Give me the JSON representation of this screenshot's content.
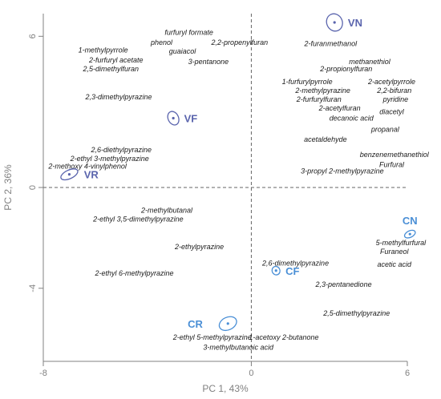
{
  "chart_data": {
    "type": "scatter",
    "xlabel": "PC 1, 43%",
    "ylabel": "PC 2, 36%",
    "xlim": [
      -8,
      6
    ],
    "ylim": [
      -6.9,
      6.9
    ],
    "x_ticks": [
      -8,
      0,
      6
    ],
    "y_ticks": [
      -4,
      0,
      6
    ],
    "reference_lines": {
      "x": 0,
      "y": 0,
      "style": "dashed"
    },
    "colors": {
      "group_dark": "#5a64ad",
      "group_light": "#4a8fd6",
      "text": "#1a1a1a",
      "axis": "#808080"
    },
    "groups": [
      {
        "label": "VN",
        "x": 3.2,
        "y": 6.55,
        "ex": 0.3,
        "ey": 0.35,
        "color": "#5a64ad"
      },
      {
        "label": "VF",
        "x": -3.0,
        "y": 2.75,
        "ex": 0.2,
        "ey": 0.28,
        "color": "#5a64ad"
      },
      {
        "label": "VR",
        "x": -7.0,
        "y": 0.52,
        "ex": 0.35,
        "ey": 0.17,
        "color": "#5a64ad"
      },
      {
        "label": "CN",
        "x": 6.1,
        "y": -1.85,
        "ex": 0.22,
        "ey": 0.13,
        "color": "#4a8fd6"
      },
      {
        "label": "CF",
        "x": 0.95,
        "y": -3.3,
        "ex": 0.15,
        "ey": 0.17,
        "color": "#4a8fd6"
      },
      {
        "label": "CR",
        "x": -0.9,
        "y": -5.4,
        "ex": 0.35,
        "ey": 0.25,
        "color": "#4a8fd6"
      }
    ],
    "variables": [
      {
        "label": "furfuryl formate",
        "x": -2.4,
        "y": 6.15
      },
      {
        "label": "phenol",
        "x": -3.45,
        "y": 5.75
      },
      {
        "label": "2,2-propenylfuran",
        "x": -0.45,
        "y": 5.75
      },
      {
        "label": "1-methylpyrrole",
        "x": -5.7,
        "y": 5.45
      },
      {
        "label": "guaiacol",
        "x": -2.65,
        "y": 5.4
      },
      {
        "label": "2-furfuryl acetate",
        "x": -5.2,
        "y": 5.05
      },
      {
        "label": "3-pentanone",
        "x": -1.65,
        "y": 5.0
      },
      {
        "label": "2,5-dimethylfuran",
        "x": -5.4,
        "y": 4.7
      },
      {
        "label": "2,3-dimethylpyrazine",
        "x": -5.1,
        "y": 3.6
      },
      {
        "label": "2-furanmethanol",
        "x": 3.05,
        "y": 5.7
      },
      {
        "label": "methanethiol",
        "x": 4.55,
        "y": 5.0
      },
      {
        "label": "2-propionylfuran",
        "x": 3.65,
        "y": 4.7
      },
      {
        "label": "1-furfurylpyrrole",
        "x": 2.15,
        "y": 4.2
      },
      {
        "label": "2-acetylpyrrole",
        "x": 5.4,
        "y": 4.2
      },
      {
        "label": "2-methylpyrazine",
        "x": 2.75,
        "y": 3.85
      },
      {
        "label": "2,2-bifuran",
        "x": 5.5,
        "y": 3.85
      },
      {
        "label": "2-furfurylfuran",
        "x": 2.6,
        "y": 3.5
      },
      {
        "label": "pyridine",
        "x": 5.55,
        "y": 3.5
      },
      {
        "label": "2-acetylfuran",
        "x": 3.4,
        "y": 3.15
      },
      {
        "label": "diacetyl",
        "x": 5.4,
        "y": 3.0
      },
      {
        "label": "decanoic acid",
        "x": 3.85,
        "y": 2.75
      },
      {
        "label": "propanal",
        "x": 5.15,
        "y": 2.3
      },
      {
        "label": "acetaldehyde",
        "x": 2.85,
        "y": 1.9
      },
      {
        "label": "benzenemethanethiol",
        "x": 5.5,
        "y": 1.3
      },
      {
        "label": "Furfural",
        "x": 5.4,
        "y": 0.9
      },
      {
        "label": "3-propyl 2-methylpyrazine",
        "x": 3.5,
        "y": 0.65
      },
      {
        "label": "2,6-diethylpyrazine",
        "x": -5.0,
        "y": 1.5
      },
      {
        "label": "2-ethyl 3-methylpyrazine",
        "x": -5.45,
        "y": 1.15
      },
      {
        "label": "2-methoxy 4-vinylphenol",
        "x": -6.3,
        "y": 0.85
      },
      {
        "label": "2-methylbutanal",
        "x": -3.25,
        "y": -0.9
      },
      {
        "label": "2-ethyl 3,5-dimethylpyrazine",
        "x": -4.35,
        "y": -1.25
      },
      {
        "label": "2-ethylpyrazine",
        "x": -2.0,
        "y": -2.35
      },
      {
        "label": "2-ethyl 6-methylpyrazine",
        "x": -4.5,
        "y": -3.4
      },
      {
        "label": "5-methylfurfural",
        "x": 5.75,
        "y": -2.2
      },
      {
        "label": "Furaneol",
        "x": 5.5,
        "y": -2.55
      },
      {
        "label": "acetic acid",
        "x": 5.5,
        "y": -3.05
      },
      {
        "label": "2,6-dimethylpyrazine",
        "x": 1.7,
        "y": -3.0
      },
      {
        "label": "2,3-pentanedione",
        "x": 3.55,
        "y": -3.85
      },
      {
        "label": "2,5-dimethylpyrazine",
        "x": 4.05,
        "y": -5.0
      },
      {
        "label": "2-ethyl 5-methylpyrazine",
        "x": -1.5,
        "y": -5.95
      },
      {
        "label": "1-acetoxy 2-butanone",
        "x": 1.25,
        "y": -5.95
      },
      {
        "label": "3-methylbutanoic acid",
        "x": -0.5,
        "y": -6.35
      }
    ]
  }
}
